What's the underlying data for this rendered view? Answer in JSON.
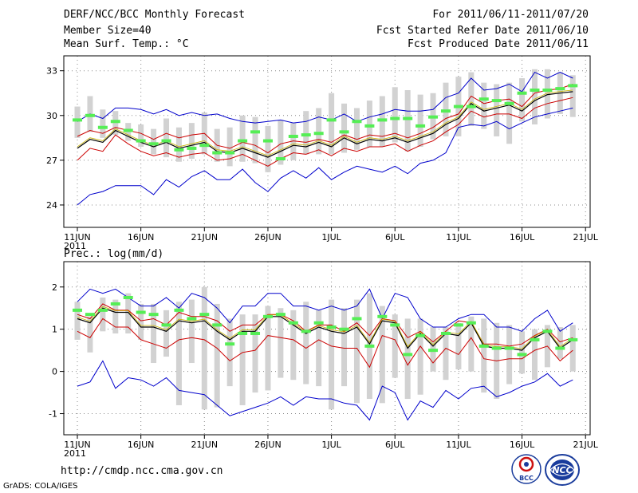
{
  "header": {
    "title": "DERF/NCC/BCC Monthly Forecast",
    "member_size": "Member Size=40",
    "variable": "Mean Surf. Temp.: °C",
    "period": "For 2011/06/11-2011/07/20",
    "start_refer": "Fcst Started Refer Date 2011/06/10",
    "produced": "Fcst Produced Date 2011/06/11"
  },
  "footer": {
    "url": "http://cmdp.ncc.cma.gov.cn",
    "grads": "GrADS: COLA/IGES",
    "logo_bcc_text": "BCC",
    "logo_ncc_text": "NCC"
  },
  "colors": {
    "max_min": "#0000cc",
    "plus_minus_sd": "#cc0000",
    "mean": "#000000",
    "observed_green": "#55ee55",
    "bar_gray": "#d2d2d2",
    "grid": "#888888",
    "median_gold": "#c9b400"
  },
  "chart_data": [
    {
      "type": "line",
      "name": "temperature",
      "title": "",
      "ylabel": "Mean Surf. Temp.: °C",
      "ylim": [
        22.5,
        34
      ],
      "yticks": [
        24,
        27,
        30,
        33
      ],
      "xtick_labels": [
        "11JUN",
        "16JUN",
        "21JUN",
        "26JUN",
        "1JUL",
        "6JUL",
        "11JUL",
        "16JUL",
        "21JUL"
      ],
      "xtick_year": "2011",
      "xtick_days": [
        1,
        6,
        11,
        16,
        21,
        26,
        31,
        36,
        41
      ],
      "days": [
        1,
        2,
        3,
        4,
        5,
        6,
        7,
        8,
        9,
        10,
        11,
        12,
        13,
        14,
        15,
        16,
        17,
        18,
        19,
        20,
        21,
        22,
        23,
        24,
        25,
        26,
        27,
        28,
        29,
        30,
        31,
        32,
        33,
        34,
        35,
        36,
        37,
        38,
        39,
        40
      ],
      "series": [
        {
          "name": "max",
          "values": [
            29.6,
            30.1,
            29.8,
            30.5,
            30.5,
            30.4,
            30.1,
            30.4,
            30.0,
            30.2,
            30.0,
            30.1,
            29.8,
            29.6,
            29.5,
            29.6,
            29.7,
            29.5,
            29.6,
            29.9,
            29.7,
            30.1,
            29.6,
            29.9,
            30.1,
            30.4,
            30.3,
            30.3,
            30.4,
            31.2,
            31.5,
            32.5,
            31.7,
            31.8,
            32.1,
            31.6,
            32.9,
            32.5,
            32.9,
            32.5
          ]
        },
        {
          "name": "plus_sd",
          "values": [
            28.6,
            29.0,
            28.8,
            29.2,
            29.0,
            28.8,
            28.4,
            28.8,
            28.5,
            28.7,
            28.8,
            28.0,
            27.8,
            28.2,
            28.0,
            27.5,
            28.1,
            28.3,
            28.2,
            28.4,
            28.2,
            28.7,
            28.4,
            28.7,
            28.6,
            28.8,
            28.5,
            28.8,
            29.2,
            29.8,
            30.1,
            31.3,
            30.8,
            31.0,
            31.1,
            30.6,
            31.5,
            31.7,
            31.8,
            32.1
          ]
        },
        {
          "name": "mean",
          "values": [
            27.8,
            28.4,
            28.2,
            29.0,
            28.6,
            28.2,
            27.9,
            28.2,
            27.8,
            28.0,
            28.2,
            27.6,
            27.5,
            27.8,
            27.5,
            27.2,
            27.6,
            28.0,
            27.9,
            28.2,
            27.9,
            28.5,
            28.1,
            28.4,
            28.3,
            28.5,
            28.2,
            28.5,
            28.8,
            29.4,
            29.8,
            30.8,
            30.3,
            30.5,
            30.7,
            30.3,
            31.0,
            31.4,
            31.5,
            31.6
          ]
        },
        {
          "name": "minus_sd",
          "values": [
            27.0,
            27.8,
            27.6,
            28.7,
            28.1,
            27.6,
            27.3,
            27.5,
            27.2,
            27.4,
            27.5,
            27.0,
            27.1,
            27.4,
            27.0,
            26.6,
            27.1,
            27.5,
            27.4,
            27.7,
            27.3,
            27.8,
            27.6,
            27.9,
            27.9,
            28.1,
            27.6,
            28.0,
            28.3,
            28.9,
            29.4,
            30.3,
            29.9,
            30.1,
            30.1,
            29.8,
            30.5,
            30.8,
            31.0,
            31.2
          ]
        },
        {
          "name": "min",
          "values": [
            24.0,
            24.7,
            24.9,
            25.3,
            25.3,
            25.3,
            24.7,
            25.7,
            25.2,
            25.9,
            26.3,
            25.7,
            25.7,
            26.4,
            25.5,
            24.9,
            25.8,
            26.3,
            25.8,
            26.5,
            25.7,
            26.2,
            26.6,
            26.4,
            26.2,
            26.6,
            26.1,
            26.8,
            27.0,
            27.5,
            29.2,
            29.4,
            29.3,
            29.6,
            29.1,
            29.5,
            29.9,
            30.1,
            30.3,
            30.5
          ]
        },
        {
          "name": "observed_markers",
          "values": [
            29.7,
            30.0,
            29.2,
            29.6,
            29.0,
            28.3,
            28.1,
            28.3,
            27.7,
            27.8,
            28.0,
            27.5,
            27.5,
            28.3,
            28.9,
            28.3,
            27.1,
            28.6,
            28.7,
            28.8,
            29.7,
            28.9,
            29.6,
            29.3,
            29.7,
            29.8,
            29.8,
            29.3,
            29.9,
            30.3,
            30.6,
            30.6,
            31.1,
            31.0,
            30.8,
            31.5,
            31.7,
            31.7,
            31.8,
            32.0
          ]
        }
      ],
      "boxes": {
        "low": [
          28.5,
          28.9,
          28.5,
          28.7,
          28.3,
          27.9,
          27.4,
          27.2,
          26.9,
          27.1,
          27.4,
          26.9,
          26.6,
          26.9,
          26.8,
          26.2,
          26.7,
          27.0,
          27.4,
          27.4,
          27.4,
          27.5,
          27.7,
          27.9,
          27.9,
          28.2,
          27.6,
          27.9,
          28.4,
          28.6,
          28.6,
          29.3,
          29.1,
          28.6,
          28.1,
          29.6,
          29.4,
          29.8,
          30.1,
          29.9
        ],
        "high": [
          30.6,
          31.3,
          30.4,
          30.3,
          29.5,
          29.4,
          29.1,
          29.8,
          29.2,
          29.5,
          30.2,
          29.1,
          29.2,
          30.0,
          29.9,
          29.3,
          29.7,
          29.5,
          30.3,
          30.5,
          31.5,
          30.8,
          30.5,
          31.0,
          31.3,
          31.9,
          31.7,
          31.4,
          31.5,
          32.2,
          32.6,
          32.9,
          32.2,
          32.1,
          32.2,
          32.5,
          33.1,
          33.1,
          32.9,
          32.7
        ]
      }
    },
    {
      "type": "line",
      "name": "precipitation",
      "title": "",
      "ylabel": "Prec.: log(mm/d)",
      "ylim": [
        -1.5,
        2.6
      ],
      "yticks": [
        -1,
        0,
        1,
        2
      ],
      "xtick_labels": [
        "11JUN",
        "16JUN",
        "21JUN",
        "26JUN",
        "1JUL",
        "6JUL",
        "11JUL",
        "16JUL",
        "21JUL"
      ],
      "xtick_year": "2011",
      "xtick_days": [
        1,
        6,
        11,
        16,
        21,
        26,
        31,
        36,
        41
      ],
      "days": [
        1,
        2,
        3,
        4,
        5,
        6,
        7,
        8,
        9,
        10,
        11,
        12,
        13,
        14,
        15,
        16,
        17,
        18,
        19,
        20,
        21,
        22,
        23,
        24,
        25,
        26,
        27,
        28,
        29,
        30,
        31,
        32,
        33,
        34,
        35,
        36,
        37,
        38,
        39,
        40
      ],
      "series": [
        {
          "name": "max",
          "values": [
            1.65,
            1.95,
            1.85,
            1.95,
            1.75,
            1.55,
            1.55,
            1.75,
            1.5,
            1.85,
            1.75,
            1.5,
            1.15,
            1.55,
            1.55,
            1.85,
            1.85,
            1.55,
            1.55,
            1.45,
            1.55,
            1.45,
            1.55,
            1.95,
            1.25,
            1.85,
            1.75,
            1.25,
            1.05,
            1.05,
            1.25,
            1.35,
            1.35,
            1.05,
            1.05,
            0.95,
            1.25,
            1.45,
            0.95,
            1.15
          ]
        },
        {
          "name": "plus_sd",
          "values": [
            1.35,
            1.25,
            1.6,
            1.45,
            1.45,
            1.2,
            1.25,
            1.1,
            1.4,
            1.3,
            1.3,
            1.2,
            0.95,
            1.1,
            1.1,
            1.35,
            1.35,
            1.2,
            0.95,
            1.1,
            1.1,
            0.95,
            1.15,
            0.85,
            1.25,
            1.2,
            0.8,
            0.95,
            0.7,
            0.95,
            1.2,
            1.15,
            0.65,
            0.65,
            0.6,
            0.65,
            0.85,
            1.0,
            0.7,
            0.8
          ]
        },
        {
          "name": "mean",
          "values": [
            1.25,
            1.15,
            1.5,
            1.4,
            1.4,
            1.05,
            1.05,
            0.95,
            1.2,
            1.15,
            1.2,
            0.95,
            0.75,
            0.95,
            0.95,
            1.3,
            1.3,
            1.1,
            0.9,
            1.05,
            0.95,
            0.9,
            1.05,
            0.65,
            1.2,
            1.15,
            0.55,
            0.9,
            0.6,
            0.9,
            0.85,
            1.15,
            0.6,
            0.55,
            0.55,
            0.5,
            0.8,
            0.95,
            0.55,
            0.75
          ]
        },
        {
          "name": "minus_sd",
          "values": [
            0.95,
            0.8,
            1.25,
            1.05,
            1.05,
            0.75,
            0.65,
            0.55,
            0.75,
            0.8,
            0.75,
            0.55,
            0.25,
            0.45,
            0.5,
            0.85,
            0.8,
            0.75,
            0.55,
            0.75,
            0.6,
            0.55,
            0.55,
            0.1,
            0.85,
            0.75,
            0.15,
            0.6,
            0.2,
            0.55,
            0.4,
            0.8,
            0.3,
            0.25,
            0.3,
            0.3,
            0.5,
            0.6,
            0.25,
            0.5
          ]
        },
        {
          "name": "min",
          "values": [
            -0.35,
            -0.25,
            0.25,
            -0.4,
            -0.15,
            -0.2,
            -0.35,
            -0.15,
            -0.45,
            -0.5,
            -0.55,
            -0.8,
            -1.05,
            -0.95,
            -0.85,
            -0.75,
            -0.6,
            -0.8,
            -0.6,
            -0.65,
            -0.65,
            -0.75,
            -0.8,
            -1.15,
            -0.35,
            -0.5,
            -1.15,
            -0.7,
            -0.85,
            -0.45,
            -0.65,
            -0.4,
            -0.35,
            -0.6,
            -0.5,
            -0.35,
            -0.25,
            -0.05,
            -0.35,
            -0.2
          ]
        },
        {
          "name": "observed_markers",
          "values": [
            1.45,
            1.35,
            1.45,
            1.6,
            1.75,
            1.4,
            1.35,
            1.1,
            1.45,
            1.25,
            1.35,
            1.1,
            0.65,
            0.9,
            0.9,
            1.3,
            1.35,
            1.15,
            0.95,
            1.15,
            1.05,
            1.0,
            1.25,
            0.6,
            1.3,
            1.1,
            0.4,
            0.85,
            0.5,
            0.9,
            1.1,
            1.15,
            0.6,
            0.55,
            0.55,
            0.4,
            0.75,
            0.95,
            0.55,
            0.75
          ]
        }
      ],
      "boxes": {
        "low": [
          0.75,
          0.45,
          0.95,
          0.9,
          0.9,
          0.75,
          0.2,
          0.35,
          -0.8,
          0.2,
          -0.9,
          -0.85,
          -0.35,
          -0.8,
          -0.5,
          -0.45,
          -0.15,
          -0.2,
          -0.3,
          -0.35,
          -0.9,
          -0.35,
          -0.75,
          -0.65,
          -0.75,
          -0.15,
          -0.65,
          -0.55,
          0.0,
          -0.2,
          0.05,
          0.0,
          -0.5,
          -0.65,
          -0.3,
          -0.05,
          -0.2,
          0.1,
          0.3,
          0.0
        ],
        "high": [
          1.65,
          1.3,
          1.75,
          1.7,
          1.85,
          1.6,
          1.6,
          1.45,
          1.65,
          1.7,
          2.0,
          1.6,
          1.25,
          1.35,
          1.35,
          1.55,
          1.5,
          1.45,
          1.65,
          1.45,
          1.7,
          1.5,
          1.7,
          1.85,
          1.55,
          1.35,
          1.25,
          1.25,
          1.05,
          1.05,
          1.15,
          1.3,
          1.25,
          1.15,
          1.1,
          0.95,
          1.0,
          1.1,
          1.05,
          1.1
        ]
      }
    }
  ]
}
